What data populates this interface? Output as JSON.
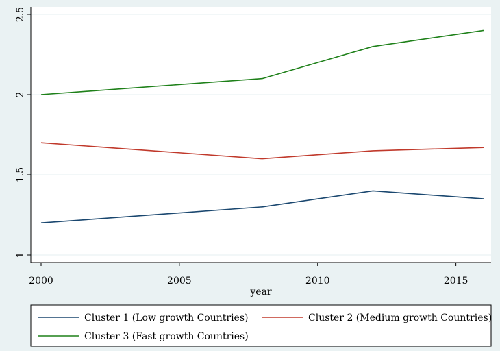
{
  "chart_data": {
    "type": "line",
    "xlabel": "year",
    "ylabel": "",
    "xlim": [
      2000,
      2016
    ],
    "ylim": [
      1,
      2.5
    ],
    "x_ticks": [
      "2000",
      "2005",
      "2010",
      "2015"
    ],
    "y_ticks": [
      "1",
      "1.5",
      "2",
      "2.5"
    ],
    "grid": "horizontal",
    "legend_position": "bottom",
    "series": [
      {
        "name": "Cluster 1 (Low growth Countries)",
        "color": "#1a476f",
        "x": [
          2000,
          2008,
          2012,
          2016
        ],
        "y": [
          1.2,
          1.3,
          1.4,
          1.35
        ]
      },
      {
        "name": "Cluster 2 (Medium growth Countries)",
        "color": "#c0392b",
        "x": [
          2000,
          2008,
          2012,
          2016
        ],
        "y": [
          1.7,
          1.6,
          1.65,
          1.67
        ]
      },
      {
        "name": "Cluster 3 (Fast growth Countries)",
        "color": "#1e8019",
        "x": [
          2000,
          2008,
          2012,
          2016
        ],
        "y": [
          2.0,
          2.1,
          2.3,
          2.4
        ]
      }
    ]
  }
}
